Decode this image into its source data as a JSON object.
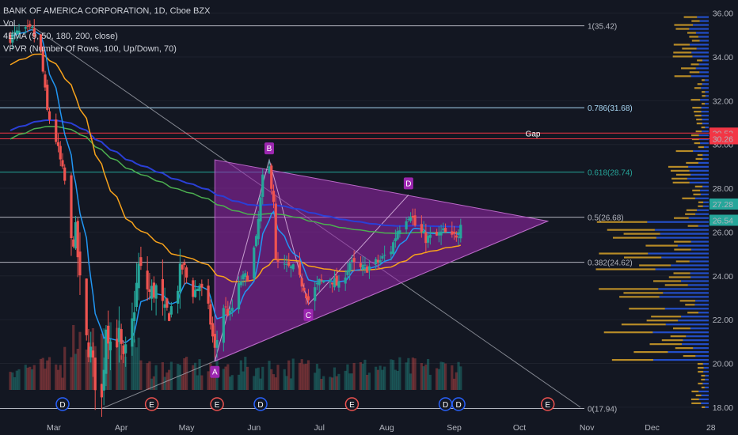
{
  "legend": {
    "title": "BANK OF AMERICA CORPORATION, 1D, Cboe BZX",
    "vol": "Vol",
    "ema": "4EMA (9, 50, 180, 200, close)",
    "vpvr": "VPVR (Number Of Rows, 100, Up/Down, 70)"
  },
  "colors": {
    "up": "#26a69a",
    "down": "#ef5350",
    "bg": "#131722",
    "grid": "#1e222d",
    "ema9": "#2196f3",
    "ema50": "#f7a21b",
    "ema180": "#4caf50",
    "ema200": "#2a3fd6",
    "triangle": "#9c27b0",
    "vpUp": "#2962ff",
    "vpDown": "#f0b429",
    "fibLight": "#a9d8f5",
    "fibTeal": "#26a69a",
    "gapRed": "#f23645",
    "white": "#b2b5be"
  },
  "chart_data": {
    "type": "candlestick",
    "y_ticks": [
      "18.00",
      "20.00",
      "22.00",
      "24.00",
      "26.00",
      "28.00",
      "30.00",
      "32.00",
      "34.00",
      "36.00"
    ],
    "ylim": [
      17.2,
      36.6
    ],
    "x_ticks": [
      "Mar",
      "Apr",
      "May",
      "Jun",
      "Jul",
      "Aug",
      "Sep",
      "Oct",
      "Nov",
      "Dec",
      "28"
    ],
    "price_labels": [
      {
        "value": 30.52,
        "text": "30.52",
        "color": "#f23645"
      },
      {
        "value": 30.26,
        "text": "30.26",
        "color": "#f23645"
      },
      {
        "value": 27.28,
        "text": "27.28",
        "color": "#26a69a"
      },
      {
        "value": 26.54,
        "text": "26.54",
        "color": "#26a69a"
      }
    ],
    "fib_levels": [
      {
        "ratio": "1",
        "value": 35.42,
        "label": "1(35.42)",
        "color": "#b2b5be"
      },
      {
        "ratio": "0.786",
        "value": 31.68,
        "label": "0.786(31.68)",
        "color": "#a9d8f5"
      },
      {
        "ratio": "0.618",
        "value": 28.74,
        "label": "0.618(28.74)",
        "color": "#26a69a"
      },
      {
        "ratio": "0.5",
        "value": 26.68,
        "label": "0.5(26.68)",
        "color": "#b2b5be"
      },
      {
        "ratio": "0.382",
        "value": 24.62,
        "label": "0.382(24.62)",
        "color": "#b2b5be"
      },
      {
        "ratio": "0",
        "value": 17.94,
        "label": "0(17.94)",
        "color": "#b2b5be"
      }
    ],
    "gap": {
      "label": "Gap",
      "upper": 30.52,
      "lower": 30.26
    },
    "pattern_points": [
      {
        "label": "A",
        "x": "2020-05-14",
        "y": 20.1
      },
      {
        "label": "B",
        "x": "2020-06-08",
        "y": 29.3
      },
      {
        "label": "C",
        "x": "2020-06-26",
        "y": 22.7
      },
      {
        "label": "D",
        "x": "2020-08-11",
        "y": 27.7
      }
    ],
    "triangle": {
      "start_top": {
        "x": "2020-05-14",
        "y": 29.3
      },
      "start_bottom": {
        "x": "2020-05-14",
        "y": 20.1
      },
      "apex": {
        "x": "2020-10-14",
        "y": 26.5
      }
    },
    "trendlines": [
      {
        "from": {
          "x": "2020-03-23",
          "y": 17.94
        },
        "to": {
          "x": "2020-10-14",
          "y": 26.5
        }
      },
      {
        "from": {
          "x": "2020-02-20",
          "y": 35.4
        },
        "to": {
          "x": "2020-10-29",
          "y": 18.0
        }
      }
    ],
    "events": [
      {
        "type": "D",
        "x": "2020-03-05",
        "color": "#2962ff"
      },
      {
        "type": "E",
        "x": "2020-04-15",
        "color": "#ef5350"
      },
      {
        "type": "E",
        "x": "2020-05-15",
        "color": "#ef5350"
      },
      {
        "type": "D",
        "x": "2020-06-04",
        "color": "#2962ff"
      },
      {
        "type": "E",
        "x": "2020-07-16",
        "color": "#ef5350"
      },
      {
        "type": "D",
        "x": "2020-08-28",
        "color": "#2962ff"
      },
      {
        "type": "D",
        "x": "2020-09-03",
        "color": "#2962ff"
      },
      {
        "type": "E",
        "x": "2020-10-14",
        "color": "#ef5350"
      }
    ],
    "close_path": [
      [
        "2020-02-10",
        34.9
      ],
      [
        "2020-02-14",
        35.1
      ],
      [
        "2020-02-20",
        35.2
      ],
      [
        "2020-02-24",
        34.2
      ],
      [
        "2020-02-27",
        31.5
      ],
      [
        "2020-03-02",
        30.2
      ],
      [
        "2020-03-06",
        28.3
      ],
      [
        "2020-03-09",
        25.4
      ],
      [
        "2020-03-11",
        26.2
      ],
      [
        "2020-03-13",
        23.6
      ],
      [
        "2020-03-16",
        21.0
      ],
      [
        "2020-03-18",
        20.5
      ],
      [
        "2020-03-20",
        19.2
      ],
      [
        "2020-03-23",
        18.3
      ],
      [
        "2020-03-25",
        21.8
      ],
      [
        "2020-03-27",
        21.0
      ],
      [
        "2020-03-31",
        21.2
      ],
      [
        "2020-04-02",
        20.0
      ],
      [
        "2020-04-06",
        21.8
      ],
      [
        "2020-04-09",
        24.4
      ],
      [
        "2020-04-14",
        23.2
      ],
      [
        "2020-04-17",
        23.4
      ],
      [
        "2020-04-21",
        22.2
      ],
      [
        "2020-04-24",
        22.5
      ],
      [
        "2020-04-29",
        24.4
      ],
      [
        "2020-05-04",
        23.2
      ],
      [
        "2020-05-07",
        23.6
      ],
      [
        "2020-05-11",
        22.5
      ],
      [
        "2020-05-13",
        21.2
      ],
      [
        "2020-05-14",
        20.6
      ],
      [
        "2020-05-18",
        22.6
      ],
      [
        "2020-05-21",
        22.2
      ],
      [
        "2020-05-26",
        23.8
      ],
      [
        "2020-05-29",
        24.0
      ],
      [
        "2020-06-02",
        25.6
      ],
      [
        "2020-06-05",
        28.4
      ],
      [
        "2020-06-08",
        28.9
      ],
      [
        "2020-06-10",
        27.5
      ],
      [
        "2020-06-11",
        24.6
      ],
      [
        "2020-06-15",
        24.4
      ],
      [
        "2020-06-19",
        24.3
      ],
      [
        "2020-06-24",
        23.5
      ],
      [
        "2020-06-26",
        22.9
      ],
      [
        "2020-07-01",
        23.7
      ],
      [
        "2020-07-06",
        23.9
      ],
      [
        "2020-07-10",
        23.5
      ],
      [
        "2020-07-15",
        24.6
      ],
      [
        "2020-07-20",
        24.3
      ],
      [
        "2020-07-24",
        24.4
      ],
      [
        "2020-07-29",
        24.7
      ],
      [
        "2020-08-03",
        25.2
      ],
      [
        "2020-08-06",
        26.1
      ],
      [
        "2020-08-10",
        26.7
      ],
      [
        "2020-08-12",
        26.9
      ],
      [
        "2020-08-14",
        26.3
      ],
      [
        "2020-08-19",
        25.7
      ],
      [
        "2020-08-24",
        25.8
      ],
      [
        "2020-08-27",
        26.0
      ],
      [
        "2020-08-31",
        25.7
      ],
      [
        "2020-09-03",
        26.0
      ],
      [
        "2020-09-04",
        26.54
      ]
    ]
  }
}
